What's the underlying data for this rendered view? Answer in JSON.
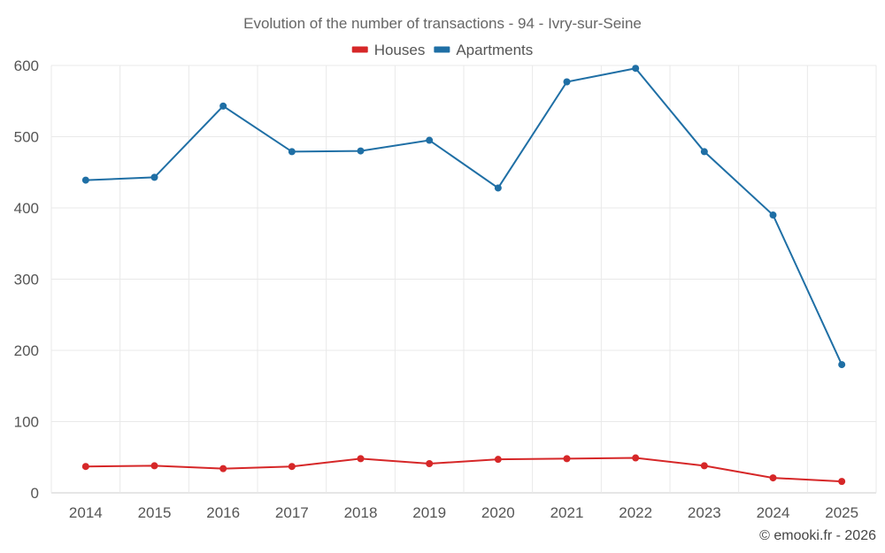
{
  "chart_data": {
    "type": "line",
    "title": "Evolution of the number of transactions - 94 - Ivry-sur-Seine",
    "xlabel": "",
    "ylabel": "",
    "categories": [
      "2014",
      "2015",
      "2016",
      "2017",
      "2018",
      "2019",
      "2020",
      "2021",
      "2022",
      "2023",
      "2024",
      "2025"
    ],
    "ylim": [
      0,
      600
    ],
    "yticks": [
      0,
      100,
      200,
      300,
      400,
      500,
      600
    ],
    "grid": true,
    "legend_position": "top-center",
    "series": [
      {
        "name": "Houses",
        "color": "#d62728",
        "values": [
          37,
          38,
          34,
          37,
          48,
          41,
          47,
          48,
          49,
          38,
          21,
          16
        ]
      },
      {
        "name": "Apartments",
        "color": "#1f6fa5",
        "values": [
          439,
          443,
          543,
          479,
          480,
          495,
          428,
          577,
          596,
          479,
          390,
          180
        ]
      }
    ]
  },
  "credit": "© emooki.fr - 2026"
}
